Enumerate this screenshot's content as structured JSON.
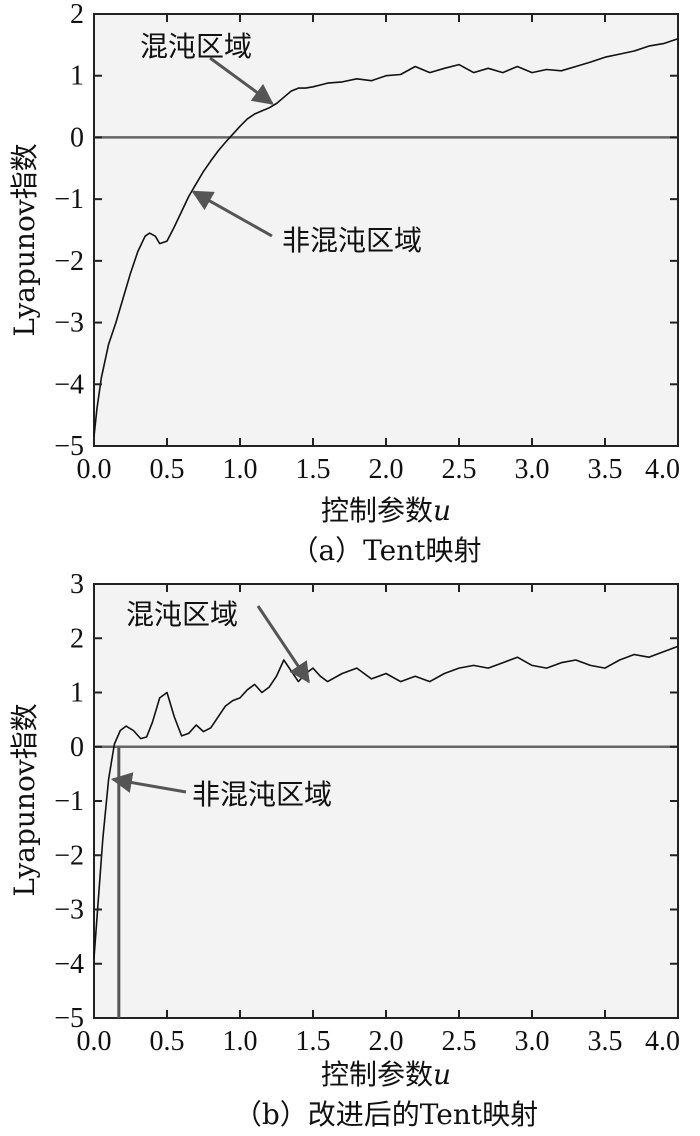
{
  "chart_data": [
    {
      "type": "line",
      "caption": "（a）Tent映射",
      "xlabel_main": "控制参数",
      "xlabel_var": "u",
      "ylabel": "Lyapunov指数",
      "xlim": [
        0.0,
        4.0
      ],
      "ylim": [
        -5,
        2
      ],
      "xticks": [
        "0.0",
        "0.5",
        "1.0",
        "1.5",
        "2.0",
        "2.5",
        "3.0",
        "3.5",
        "4.0"
      ],
      "yticks": [
        "-5",
        "-4",
        "-3",
        "-2",
        "-1",
        "0",
        "1",
        "2"
      ],
      "zero_line": 0,
      "annotations": [
        {
          "text": "混沌区域",
          "points_to": [
            1.22,
            0.55
          ]
        },
        {
          "text": "非混沌区域",
          "points_to": [
            0.68,
            -0.88
          ]
        }
      ],
      "series": [
        {
          "x": [
            0.0,
            0.02,
            0.05,
            0.1,
            0.15,
            0.2,
            0.25,
            0.3,
            0.35,
            0.38,
            0.42,
            0.45,
            0.5,
            0.55,
            0.6,
            0.65,
            0.7,
            0.75,
            0.8,
            0.85,
            0.9,
            0.95,
            1.0,
            1.05,
            1.1,
            1.15,
            1.2,
            1.25,
            1.3,
            1.35,
            1.4,
            1.45,
            1.5,
            1.55,
            1.6,
            1.7,
            1.8,
            1.9,
            2.0,
            2.1,
            2.2,
            2.3,
            2.4,
            2.5,
            2.6,
            2.7,
            2.8,
            2.9,
            3.0,
            3.1,
            3.2,
            3.3,
            3.4,
            3.5,
            3.6,
            3.7,
            3.8,
            3.9,
            4.0
          ],
          "y": [
            -4.85,
            -4.4,
            -3.9,
            -3.35,
            -3.0,
            -2.6,
            -2.2,
            -1.85,
            -1.6,
            -1.55,
            -1.6,
            -1.72,
            -1.68,
            -1.45,
            -1.2,
            -0.95,
            -0.75,
            -0.55,
            -0.38,
            -0.22,
            -0.08,
            0.05,
            0.18,
            0.3,
            0.38,
            0.43,
            0.48,
            0.55,
            0.65,
            0.75,
            0.8,
            0.8,
            0.82,
            0.85,
            0.88,
            0.9,
            0.95,
            0.92,
            1.0,
            1.02,
            1.15,
            1.05,
            1.12,
            1.18,
            1.05,
            1.12,
            1.05,
            1.15,
            1.05,
            1.1,
            1.08,
            1.15,
            1.22,
            1.3,
            1.35,
            1.4,
            1.48,
            1.52,
            1.6
          ]
        }
      ]
    },
    {
      "type": "line",
      "caption": "（b）改进后的Tent映射",
      "xlabel_main": "控制参数",
      "xlabel_var": "u",
      "ylabel": "Lyapunov指数",
      "xlim": [
        0.0,
        4.0
      ],
      "ylim": [
        -5,
        3
      ],
      "xticks": [
        "0.0",
        "0.5",
        "1.0",
        "1.5",
        "2.0",
        "2.5",
        "3.0",
        "3.5",
        "4.0"
      ],
      "yticks": [
        "-5",
        "-4",
        "-3",
        "-2",
        "-1",
        "0",
        "1",
        "2",
        "3"
      ],
      "zero_line": 0,
      "vertical_line_x": 0.17,
      "annotations": [
        {
          "text": "混沌区域",
          "points_to": [
            1.47,
            1.2
          ]
        },
        {
          "text": "非混沌区域",
          "points_to": [
            0.13,
            -0.6
          ]
        }
      ],
      "series": [
        {
          "x": [
            0.0,
            0.03,
            0.06,
            0.1,
            0.14,
            0.18,
            0.22,
            0.27,
            0.32,
            0.36,
            0.4,
            0.45,
            0.5,
            0.55,
            0.6,
            0.65,
            0.7,
            0.75,
            0.8,
            0.85,
            0.9,
            0.95,
            1.0,
            1.05,
            1.1,
            1.15,
            1.2,
            1.25,
            1.3,
            1.35,
            1.4,
            1.45,
            1.5,
            1.55,
            1.6,
            1.7,
            1.8,
            1.9,
            2.0,
            2.1,
            2.2,
            2.3,
            2.4,
            2.5,
            2.6,
            2.7,
            2.8,
            2.9,
            3.0,
            3.1,
            3.2,
            3.3,
            3.4,
            3.5,
            3.6,
            3.7,
            3.8,
            3.9,
            4.0
          ],
          "y": [
            -3.9,
            -2.8,
            -1.7,
            -0.6,
            0.05,
            0.3,
            0.38,
            0.3,
            0.15,
            0.18,
            0.45,
            0.9,
            1.0,
            0.55,
            0.2,
            0.25,
            0.4,
            0.28,
            0.35,
            0.55,
            0.75,
            0.85,
            0.9,
            1.05,
            1.15,
            1.0,
            1.1,
            1.3,
            1.6,
            1.4,
            1.2,
            1.35,
            1.45,
            1.3,
            1.2,
            1.35,
            1.45,
            1.25,
            1.35,
            1.2,
            1.3,
            1.2,
            1.35,
            1.45,
            1.5,
            1.45,
            1.55,
            1.65,
            1.5,
            1.45,
            1.55,
            1.6,
            1.5,
            1.45,
            1.6,
            1.7,
            1.65,
            1.75,
            1.85
          ]
        }
      ]
    }
  ]
}
